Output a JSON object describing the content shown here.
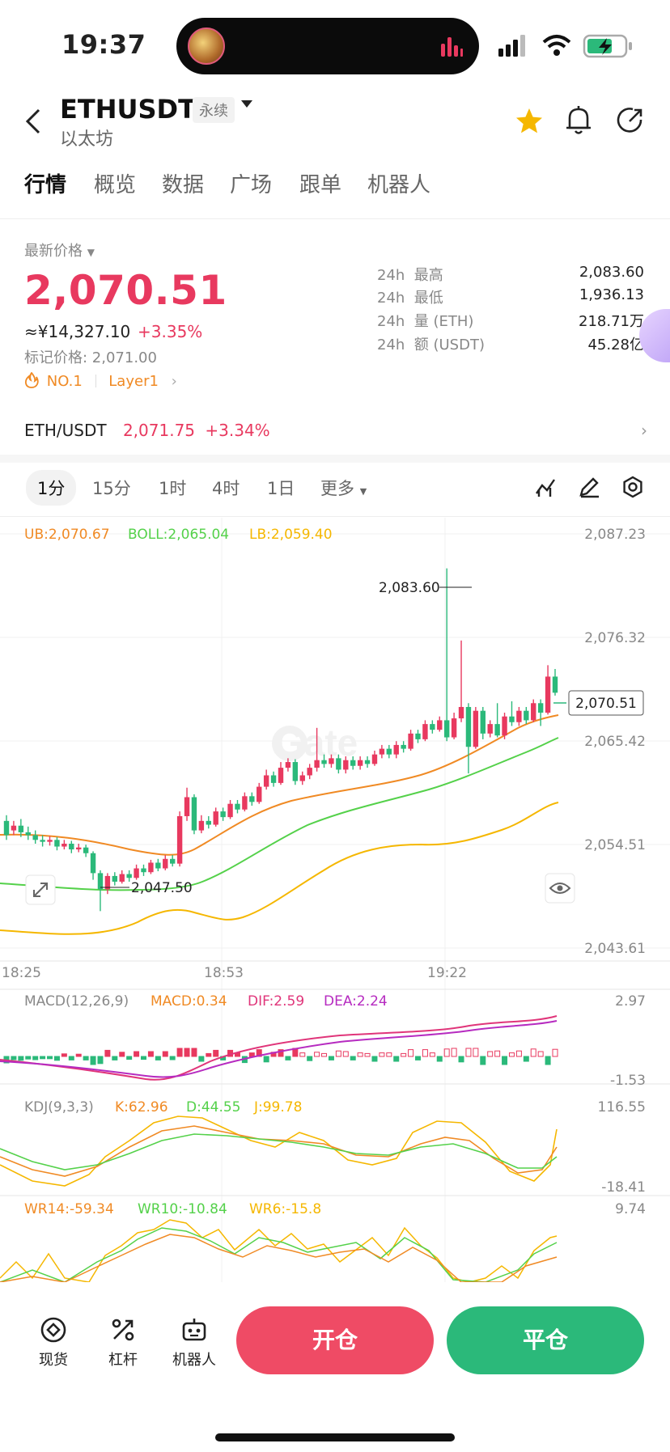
{
  "status_bar": {
    "time": "19:37"
  },
  "header": {
    "title": "ETHUSDT",
    "tag": "永续",
    "subtitle": "以太坊",
    "icons": [
      "back-icon",
      "star-icon",
      "bell-icon",
      "share-icon"
    ]
  },
  "tabs": [
    "行情",
    "概览",
    "数据",
    "广场",
    "跟单",
    "机器人"
  ],
  "price": {
    "label": "最新价格",
    "last": "2,070.51",
    "cny": "≈¥14,327.10",
    "change": "+3.35%",
    "mark": "标记价格: 2,071.00",
    "rank": "NO.1",
    "sector": "Layer1"
  },
  "stats": [
    {
      "prefix": "24h",
      "label": "最高",
      "value": "2,083.60"
    },
    {
      "prefix": "24h",
      "label": "最低",
      "value": "1,936.13"
    },
    {
      "prefix": "24h",
      "label": "量 (ETH)",
      "value": "218.71万"
    },
    {
      "prefix": "24h",
      "label": "额 (USDT)",
      "value": "45.28亿"
    }
  ],
  "spot": {
    "pair": "ETH/USDT",
    "price": "2,071.75",
    "change": "+3.34%"
  },
  "intervals": [
    "1分",
    "15分",
    "1时",
    "4时",
    "1日",
    "更多"
  ],
  "colors": {
    "up": "#e8395f",
    "down": "#2bb97a",
    "ub": "#f08a24",
    "boll": "#54d14a",
    "lb": "#f5b700",
    "accent": "#e8395f"
  },
  "chart_data": {
    "type": "candlestick",
    "indicators": {
      "ub": "UB:2,070.67",
      "boll": "BOLL:2,065.04",
      "lb": "LB:2,059.40"
    },
    "y_ticks": [
      "2,087.23",
      "2,076.32",
      "2,065.42",
      "2,054.51",
      "2,043.61"
    ],
    "x_ticks": [
      "18:25",
      "18:53",
      "19:22"
    ],
    "ylim": [
      2043.61,
      2087.23
    ],
    "high_label": "2,083.60",
    "low_label": "2,047.50",
    "last_label": "2,070.51",
    "candles": [
      [
        2057.0,
        2055.5,
        2057.6,
        2055.0
      ],
      [
        2056.0,
        2056.5,
        2057.0,
        2055.5
      ],
      [
        2056.5,
        2055.8,
        2057.2,
        2055.3
      ],
      [
        2055.8,
        2055.5,
        2056.4,
        2055.0
      ],
      [
        2055.5,
        2055.0,
        2056.0,
        2054.6
      ],
      [
        2055.0,
        2054.8,
        2055.5,
        2054.3
      ],
      [
        2054.8,
        2055.0,
        2055.4,
        2054.4
      ],
      [
        2055.0,
        2054.3,
        2055.3,
        2053.9
      ],
      [
        2054.3,
        2054.6,
        2055.0,
        2054.0
      ],
      [
        2054.6,
        2054.0,
        2054.9,
        2053.6
      ],
      [
        2054.0,
        2054.2,
        2054.6,
        2053.7
      ],
      [
        2054.2,
        2053.6,
        2054.5,
        2053.2
      ],
      [
        2053.6,
        2051.5,
        2053.8,
        2050.8
      ],
      [
        2051.5,
        2049.8,
        2051.8,
        2047.5
      ],
      [
        2049.8,
        2051.2,
        2051.5,
        2049.3
      ],
      [
        2051.2,
        2050.6,
        2051.6,
        2050.2
      ],
      [
        2050.6,
        2051.4,
        2051.8,
        2050.4
      ],
      [
        2051.4,
        2051.0,
        2051.8,
        2050.6
      ],
      [
        2051.0,
        2052.0,
        2052.4,
        2050.8
      ],
      [
        2052.0,
        2051.6,
        2052.4,
        2051.2
      ],
      [
        2051.6,
        2052.6,
        2052.9,
        2051.4
      ],
      [
        2052.6,
        2052.0,
        2053.0,
        2051.7
      ],
      [
        2052.0,
        2053.0,
        2053.4,
        2051.8
      ],
      [
        2053.0,
        2052.5,
        2053.4,
        2052.2
      ],
      [
        2052.5,
        2057.5,
        2058.0,
        2052.2
      ],
      [
        2057.5,
        2059.5,
        2060.5,
        2057.0
      ],
      [
        2059.5,
        2056.0,
        2059.8,
        2055.6
      ],
      [
        2056.0,
        2057.0,
        2057.6,
        2055.7
      ],
      [
        2057.0,
        2056.6,
        2057.5,
        2056.2
      ],
      [
        2056.6,
        2058.0,
        2058.4,
        2056.4
      ],
      [
        2058.0,
        2057.4,
        2058.4,
        2057.0
      ],
      [
        2057.4,
        2058.8,
        2059.2,
        2057.2
      ],
      [
        2058.8,
        2058.2,
        2059.2,
        2057.8
      ],
      [
        2058.2,
        2059.6,
        2060.0,
        2058.0
      ],
      [
        2059.6,
        2059.0,
        2060.0,
        2058.6
      ],
      [
        2059.0,
        2060.6,
        2061.0,
        2058.8
      ],
      [
        2060.6,
        2061.8,
        2062.4,
        2060.3
      ],
      [
        2061.8,
        2061.0,
        2062.2,
        2060.6
      ],
      [
        2061.0,
        2062.6,
        2063.2,
        2060.8
      ],
      [
        2062.6,
        2063.2,
        2063.6,
        2062.2
      ],
      [
        2063.2,
        2061.2,
        2063.5,
        2060.8
      ],
      [
        2061.2,
        2061.8,
        2062.2,
        2060.8
      ],
      [
        2061.8,
        2062.6,
        2063.0,
        2061.4
      ],
      [
        2062.6,
        2063.4,
        2066.8,
        2062.2
      ],
      [
        2063.4,
        2063.0,
        2064.0,
        2062.6
      ],
      [
        2063.0,
        2063.6,
        2064.0,
        2062.6
      ],
      [
        2063.6,
        2062.4,
        2064.0,
        2062.0
      ],
      [
        2062.4,
        2063.4,
        2063.8,
        2062.0
      ],
      [
        2063.4,
        2062.8,
        2063.8,
        2062.4
      ],
      [
        2062.8,
        2063.4,
        2063.8,
        2062.4
      ],
      [
        2063.4,
        2063.0,
        2063.8,
        2062.6
      ],
      [
        2063.0,
        2064.0,
        2064.4,
        2062.8
      ],
      [
        2064.0,
        2064.6,
        2065.0,
        2063.6
      ],
      [
        2064.6,
        2064.0,
        2065.0,
        2063.6
      ],
      [
        2064.0,
        2065.0,
        2065.4,
        2063.6
      ],
      [
        2065.0,
        2064.6,
        2065.4,
        2064.2
      ],
      [
        2064.6,
        2066.2,
        2066.6,
        2064.4
      ],
      [
        2066.2,
        2065.6,
        2066.6,
        2065.2
      ],
      [
        2065.6,
        2067.2,
        2067.6,
        2065.4
      ],
      [
        2067.2,
        2066.6,
        2067.6,
        2066.2
      ],
      [
        2066.6,
        2067.6,
        2068.0,
        2066.4
      ],
      [
        2067.6,
        2065.8,
        2083.6,
        2065.4
      ],
      [
        2065.8,
        2067.8,
        2068.4,
        2065.6
      ],
      [
        2067.8,
        2069.0,
        2076.0,
        2067.4
      ],
      [
        2069.0,
        2064.8,
        2069.4,
        2062.0
      ],
      [
        2064.8,
        2068.6,
        2069.0,
        2064.6
      ],
      [
        2068.6,
        2066.2,
        2069.0,
        2065.6
      ],
      [
        2066.2,
        2067.2,
        2067.6,
        2065.8
      ],
      [
        2067.2,
        2066.0,
        2069.4,
        2065.8
      ],
      [
        2066.0,
        2068.0,
        2068.4,
        2065.6
      ],
      [
        2068.0,
        2067.4,
        2069.6,
        2067.0
      ],
      [
        2067.4,
        2068.6,
        2069.0,
        2067.0
      ],
      [
        2068.6,
        2067.6,
        2069.0,
        2067.2
      ],
      [
        2067.6,
        2069.4,
        2069.8,
        2067.4
      ],
      [
        2069.4,
        2068.4,
        2069.8,
        2067.0
      ],
      [
        2068.4,
        2072.2,
        2073.4,
        2068.2
      ],
      [
        2072.2,
        2070.5,
        2073.0,
        2070.2
      ]
    ],
    "macd": {
      "label": "MACD(12,26,9)",
      "macd": "MACD:0.34",
      "dif": "DIF:2.59",
      "dea": "DEA:2.24",
      "top": "2.97",
      "bottom": "-1.53"
    },
    "kdj": {
      "label": "KDJ(9,3,3)",
      "k": "K:62.96",
      "d": "D:44.55",
      "j": "J:99.78",
      "top": "116.55",
      "bottom": "-18.41"
    },
    "wr": {
      "wr14": "WR14:-59.34",
      "wr10": "WR10:-10.84",
      "wr6": "WR6:-15.8",
      "top": "9.74"
    }
  },
  "bottom_nav": [
    {
      "label": "现货",
      "icon": "spot-icon"
    },
    {
      "label": "杠杆",
      "icon": "leverage-icon"
    },
    {
      "label": "机器人",
      "icon": "robot-icon"
    }
  ],
  "actions": {
    "open": "开仓",
    "close": "平仓"
  }
}
